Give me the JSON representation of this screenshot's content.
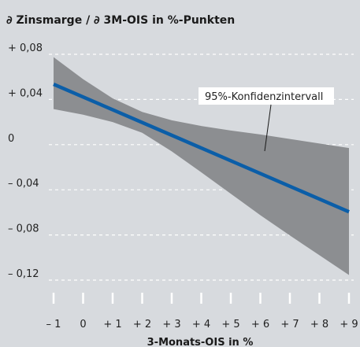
{
  "chart_data": {
    "type": "line",
    "title": "∂ Zinsmarge / ∂ 3M-OIS in %-Punkten",
    "xlabel": "3-Monats-OIS in %",
    "ylabel": "",
    "xlim": [
      -1,
      9
    ],
    "ylim": [
      -0.13,
      0.09
    ],
    "x_ticks": [
      -1,
      0,
      1,
      2,
      3,
      4,
      5,
      6,
      7,
      8,
      9
    ],
    "x_tick_labels": [
      "– 1",
      "0",
      "+ 1",
      "+ 2",
      "+ 3",
      "+ 4",
      "+ 5",
      "+ 6",
      "+ 7",
      "+ 8",
      "+ 9"
    ],
    "y_ticks": [
      0.08,
      0.04,
      0,
      -0.04,
      -0.08,
      -0.12
    ],
    "y_tick_labels": [
      "+ 0,08",
      "+ 0,04",
      "0",
      "– 0,04",
      "– 0,08",
      "– 0,12"
    ],
    "grid": "horizontal dashed (white)",
    "line": {
      "x": [
        -1,
        9
      ],
      "y": [
        0.0535,
        -0.0595
      ],
      "color": "#0b5ea8"
    },
    "confidence_band": {
      "label": "95%-Konfidenzintervall",
      "x": [
        -1,
        0,
        1,
        2,
        3,
        4,
        5,
        6,
        7,
        8,
        9
      ],
      "upper": [
        0.0775,
        0.058,
        0.041,
        0.029,
        0.0215,
        0.0165,
        0.0125,
        0.009,
        0.005,
        0.001,
        -0.003
      ],
      "lower": [
        0.0315,
        0.0265,
        0.02,
        0.0105,
        -0.006,
        -0.0245,
        -0.0435,
        -0.0625,
        -0.0805,
        -0.098,
        -0.1155
      ],
      "color": "#8c8e91"
    }
  }
}
